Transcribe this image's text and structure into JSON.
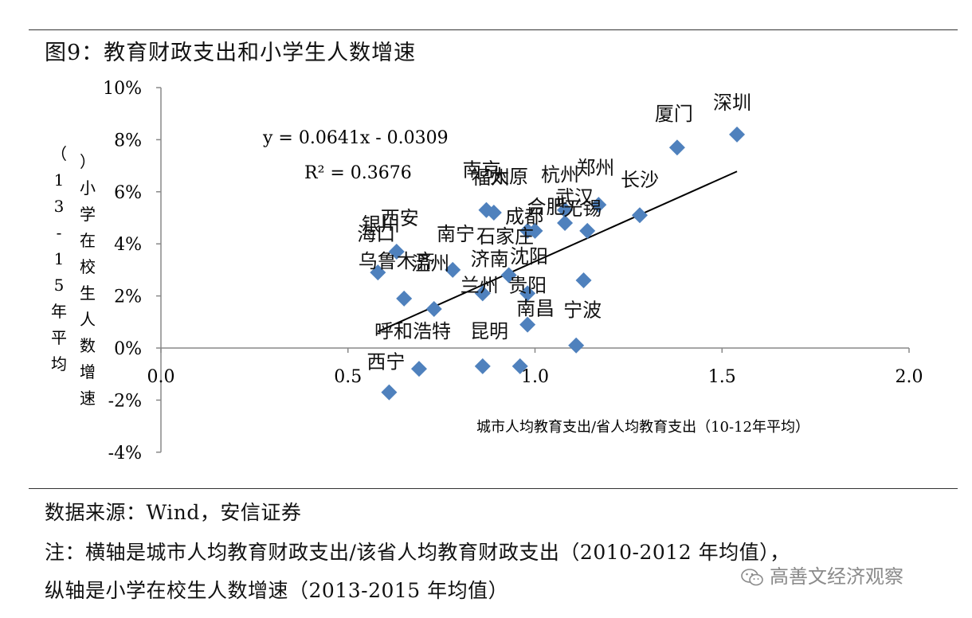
{
  "figure": {
    "title": "图9：教育财政支出和小学生人数增速"
  },
  "chart_data": {
    "type": "scatter",
    "title": "",
    "xlabel": "城市人均教育支出/省人均教育支出（10-12年平均）",
    "ylabel": "（13-15年平均）小学在校生人数增速",
    "xlim": [
      0.0,
      2.0
    ],
    "ylim": [
      -4,
      10
    ],
    "x_ticks": [
      "0.0",
      "0.5",
      "1.0",
      "1.5",
      "2.0"
    ],
    "y_ticks": [
      "-4%",
      "-2%",
      "0%",
      "2%",
      "4%",
      "6%",
      "8%",
      "10%"
    ],
    "grid": false,
    "legend": "none",
    "marker_color": "#4F81BD",
    "trendline": {
      "slope": 0.0641,
      "intercept": -0.0309,
      "y_unit": "fraction",
      "x_range": [
        0.58,
        1.54
      ],
      "equation": "y = 0.0641x - 0.0309",
      "r2": "R² = 0.3676"
    },
    "points": [
      {
        "x": 1.54,
        "y": 8.2,
        "label": "深圳"
      },
      {
        "x": 1.38,
        "y": 7.7,
        "label": "厦门"
      },
      {
        "x": 1.28,
        "y": 5.1,
        "label": "长沙"
      },
      {
        "x": 1.17,
        "y": 5.5,
        "label": "郑州"
      },
      {
        "x": 1.14,
        "y": 4.5,
        "label": "无锡"
      },
      {
        "x": 1.13,
        "y": 2.6,
        "label": ""
      },
      {
        "x": 1.08,
        "y": 5.3,
        "label": "杭州"
      },
      {
        "x": 1.08,
        "y": 4.8,
        "label": "武汉"
      },
      {
        "x": 1.0,
        "y": 4.5,
        "label": "合肥"
      },
      {
        "x": 0.98,
        "y": 4.5,
        "label": "成都"
      },
      {
        "x": 0.89,
        "y": 5.2,
        "label": "福州"
      },
      {
        "x": 0.87,
        "y": 5.3,
        "label": "南京"
      },
      {
        "x": 0.93,
        "y": 2.8,
        "label": "济南"
      },
      {
        "x": 0.98,
        "y": 2.1,
        "label": "贵阳"
      },
      {
        "x": 0.86,
        "y": 2.1,
        "label": "兰州"
      },
      {
        "x": 0.78,
        "y": 3.0,
        "label": "温州"
      },
      {
        "x": 0.98,
        "y": 0.9,
        "label": "南昌"
      },
      {
        "x": 1.11,
        "y": 0.1,
        "label": "宁波"
      },
      {
        "x": 0.86,
        "y": -0.7,
        "label": ""
      },
      {
        "x": 0.96,
        "y": -0.7,
        "label": ""
      },
      {
        "x": 0.69,
        "y": -0.8,
        "label": ""
      },
      {
        "x": 0.73,
        "y": 1.5,
        "label": "乌鲁木齐"
      },
      {
        "x": 0.65,
        "y": 1.9,
        "label": ""
      },
      {
        "x": 0.63,
        "y": 3.7,
        "label": "西安"
      },
      {
        "x": 0.58,
        "y": 2.9,
        "label": "海口"
      },
      {
        "x": 0.61,
        "y": -1.7,
        "label": "西宁"
      }
    ],
    "extra_labels": [
      "太原",
      "石家庄",
      "南宁",
      "沈阳",
      "银川",
      "昆明",
      "呼和浩特"
    ]
  },
  "notes": {
    "source": "数据来源：Wind，安信证券",
    "note1": "注：横轴是城市人均教育财政支出/该省人均教育财政支出（2010-2012 年均值），",
    "note2": "纵轴是小学在校生人数增速（2013-2015 年均值）"
  },
  "watermark": {
    "text": "高善文经济观察",
    "icon": "wechat-icon"
  }
}
